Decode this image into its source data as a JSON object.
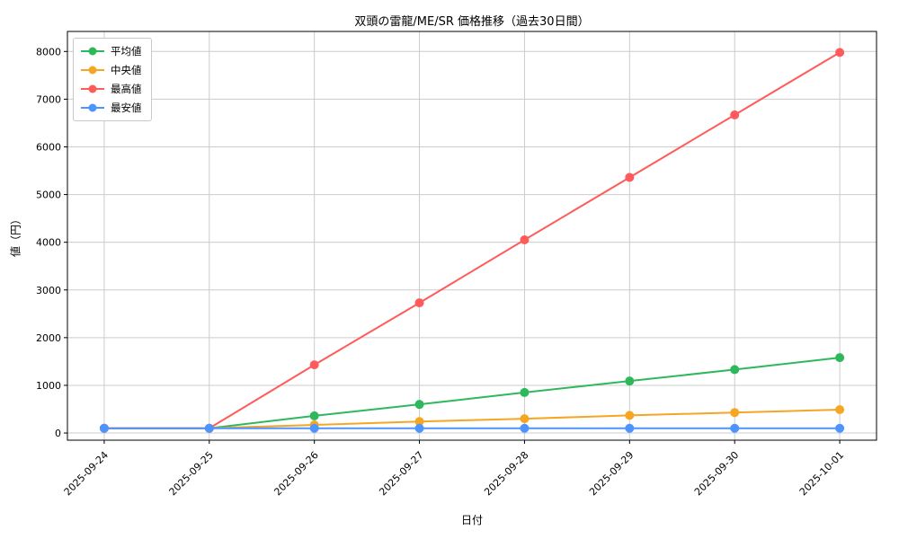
{
  "chart_data": {
    "type": "line",
    "title": "双頭の雷龍/ME/SR 価格推移（過去30日間）",
    "xlabel": "日付",
    "ylabel": "値（円）",
    "categories": [
      "2025-09-24",
      "2025-09-25",
      "2025-09-26",
      "2025-09-27",
      "2025-09-28",
      "2025-09-29",
      "2025-09-30",
      "2025-10-01"
    ],
    "series": [
      {
        "name": "平均値",
        "color": "#2eb85c",
        "values": [
          100,
          100,
          360,
          600,
          850,
          1090,
          1330,
          1580
        ]
      },
      {
        "name": "中央値",
        "color": "#f5a623",
        "values": [
          100,
          100,
          170,
          240,
          300,
          370,
          430,
          490
        ]
      },
      {
        "name": "最高値",
        "color": "#ff5b5b",
        "values": [
          100,
          100,
          1430,
          2730,
          4050,
          5360,
          6670,
          7980
        ]
      },
      {
        "name": "最安値",
        "color": "#4d94ff",
        "values": [
          100,
          100,
          100,
          100,
          100,
          100,
          100,
          100
        ]
      }
    ],
    "yticks": [
      0,
      1000,
      2000,
      3000,
      4000,
      5000,
      6000,
      7000,
      8000
    ],
    "ylim": [
      -150,
      8420
    ],
    "xlim": [
      -0.35,
      7.35
    ],
    "grid": true,
    "grid_color": "#cccccc",
    "spine_color": "#000000",
    "legend_position": "upper left"
  }
}
